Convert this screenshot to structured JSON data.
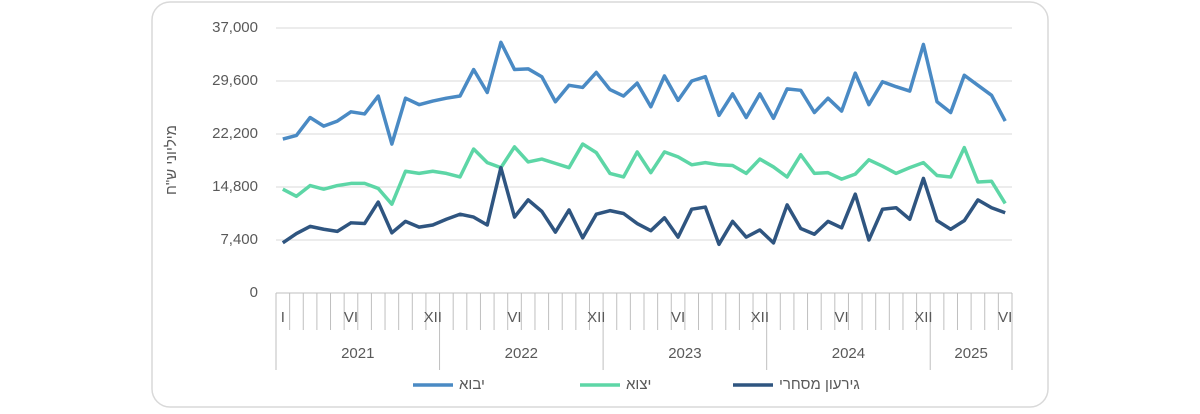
{
  "chart_data": {
    "type": "line",
    "y_label": "מיליוני ש\"ח",
    "categories": [
      "I",
      null,
      null,
      null,
      null,
      "VI",
      null,
      null,
      null,
      null,
      null,
      "XII",
      null,
      null,
      null,
      null,
      null,
      "VI",
      null,
      null,
      null,
      null,
      null,
      "XII",
      null,
      null,
      null,
      null,
      null,
      "VI",
      null,
      null,
      null,
      null,
      null,
      "XII",
      null,
      null,
      null,
      null,
      null,
      "VI",
      null,
      null,
      null,
      null,
      null,
      "XII",
      null,
      null,
      null,
      null,
      null,
      "VI"
    ],
    "year_groups": [
      {
        "label": "2021",
        "count": 12
      },
      {
        "label": "2022",
        "count": 12
      },
      {
        "label": "2023",
        "count": 12
      },
      {
        "label": "2024",
        "count": 12
      },
      {
        "label": "2025",
        "count": 6
      }
    ],
    "ylim": [
      0,
      37000
    ],
    "yticks": [
      0,
      {
        "value": 7400,
        "label": "7,400"
      },
      {
        "value": 14800,
        "label": "14,800"
      },
      {
        "value": 22200,
        "label": "22,200"
      },
      {
        "value": 29600,
        "label": "29,600"
      },
      {
        "value": 37000,
        "label": "37,000"
      }
    ],
    "grid": true,
    "series": [
      {
        "name": "יבוא",
        "color": "#4a8ac4",
        "values": [
          21500,
          22000,
          24500,
          23300,
          24000,
          25300,
          25000,
          27500,
          20800,
          27200,
          26300,
          26800,
          27200,
          27500,
          31200,
          28000,
          35000,
          31200,
          31300,
          30200,
          26700,
          29000,
          28700,
          30800,
          28400,
          27500,
          29300,
          26000,
          30300,
          26900,
          29600,
          30200,
          24800,
          27800,
          24500,
          27800,
          24400,
          28500,
          28300,
          25200,
          27200,
          25400,
          30700,
          26300,
          29500,
          28800,
          28200,
          34700,
          26700,
          25200,
          30400,
          29000,
          27600,
          24000
        ]
      },
      {
        "name": "יצוא",
        "color": "#5dd6a6",
        "values": [
          14500,
          13500,
          15000,
          14500,
          15000,
          15300,
          15300,
          14600,
          12400,
          17000,
          16700,
          17000,
          16700,
          16200,
          20100,
          18200,
          17500,
          20400,
          18300,
          18700,
          18100,
          17500,
          20800,
          19600,
          16700,
          16200,
          19700,
          16800,
          19700,
          19000,
          17900,
          18200,
          17900,
          17800,
          16700,
          18700,
          17600,
          16200,
          19300,
          16700,
          16800,
          15900,
          16600,
          18600,
          17700,
          16700,
          17500,
          18200,
          16400,
          16200,
          20300,
          15500,
          15600,
          12500
        ]
      },
      {
        "name": "גירעון מסחרי",
        "color": "#2f5580",
        "values": [
          7000,
          8300,
          9300,
          8900,
          8600,
          9800,
          9700,
          12700,
          8400,
          10000,
          9200,
          9500,
          10300,
          11000,
          10600,
          9500,
          17500,
          10600,
          13000,
          11400,
          8500,
          11600,
          7700,
          11000,
          11500,
          11100,
          9700,
          8700,
          10500,
          7800,
          11700,
          12000,
          6800,
          10000,
          7800,
          8800,
          7000,
          12300,
          9000,
          8200,
          10000,
          9100,
          13800,
          7400,
          11700,
          11900,
          10300,
          16000,
          10100,
          8900,
          10100,
          13000,
          11900,
          11200
        ]
      }
    ]
  }
}
